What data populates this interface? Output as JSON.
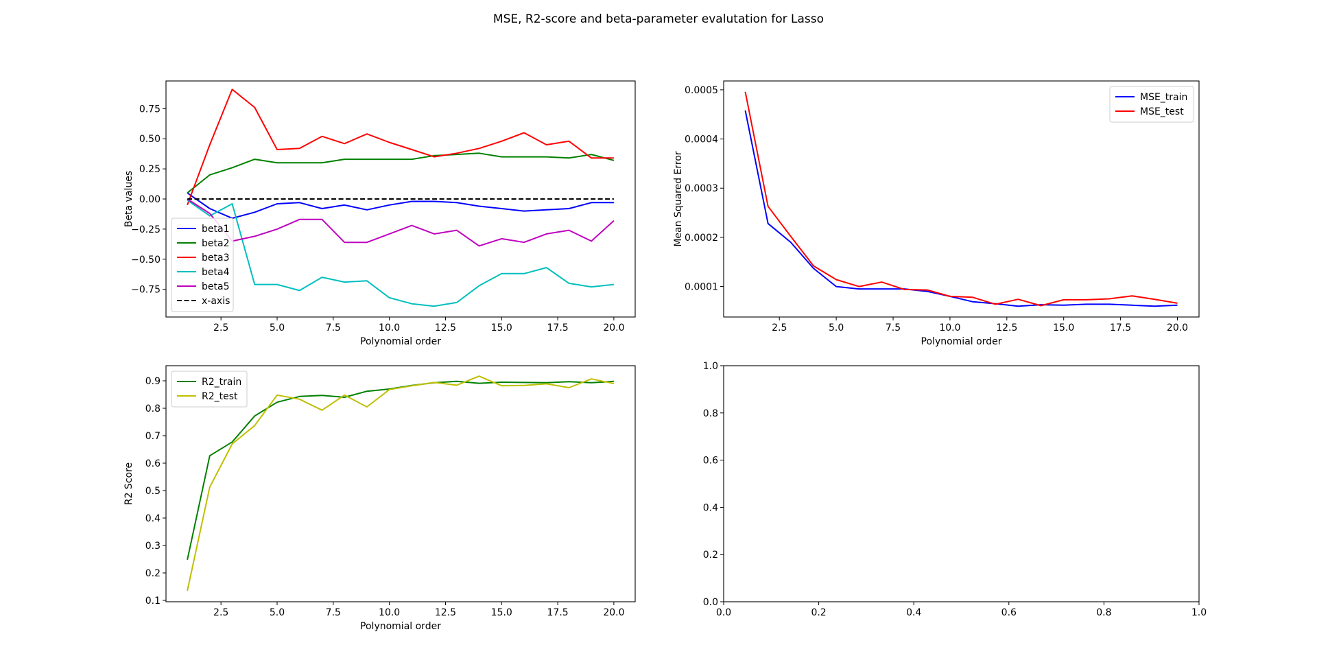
{
  "figure": {
    "title": "MSE, R2-score and beta-parameter evalutation for Lasso"
  },
  "chart_data": [
    {
      "type": "line",
      "id": "beta",
      "title": "",
      "xlabel": "Polynomial order",
      "ylabel": "Beta values",
      "xlim": [
        0.05,
        20.95
      ],
      "ylim": [
        -0.98,
        0.98
      ],
      "xticks": [
        2.5,
        5.0,
        7.5,
        10.0,
        12.5,
        15.0,
        17.5,
        20.0
      ],
      "xtick_labels": [
        "2.5",
        "5.0",
        "7.5",
        "10.0",
        "12.5",
        "15.0",
        "17.5",
        "20.0"
      ],
      "yticks": [
        -0.75,
        -0.5,
        -0.25,
        0.0,
        0.25,
        0.5,
        0.75
      ],
      "ytick_labels": [
        "−0.75",
        "−0.50",
        "−0.25",
        "0.00",
        "0.25",
        "0.50",
        "0.75"
      ],
      "legend": "lower-left",
      "x": [
        1,
        2,
        3,
        4,
        5,
        6,
        7,
        8,
        9,
        10,
        11,
        12,
        13,
        14,
        15,
        16,
        17,
        18,
        19,
        20
      ],
      "series": [
        {
          "name": "beta1",
          "color": "#0000ff",
          "dash": "solid",
          "values": [
            0.05,
            -0.08,
            -0.16,
            -0.11,
            -0.04,
            -0.03,
            -0.08,
            -0.05,
            -0.09,
            -0.05,
            -0.02,
            -0.02,
            -0.03,
            -0.06,
            -0.08,
            -0.1,
            -0.09,
            -0.08,
            -0.03,
            -0.03
          ]
        },
        {
          "name": "beta2",
          "color": "#008000",
          "dash": "solid",
          "values": [
            0.05,
            0.2,
            0.26,
            0.33,
            0.3,
            0.3,
            0.3,
            0.33,
            0.33,
            0.33,
            0.33,
            0.36,
            0.37,
            0.38,
            0.35,
            0.35,
            0.35,
            0.34,
            0.37,
            0.32
          ]
        },
        {
          "name": "beta3",
          "color": "#ff0000",
          "dash": "solid",
          "values": [
            -0.05,
            0.45,
            0.91,
            0.76,
            0.41,
            0.42,
            0.52,
            0.46,
            0.54,
            0.47,
            0.41,
            0.35,
            0.38,
            0.42,
            0.48,
            0.55,
            0.45,
            0.48,
            0.34,
            0.34
          ]
        },
        {
          "name": "beta4",
          "color": "#00bfbf",
          "dash": "solid",
          "values": [
            -0.01,
            -0.14,
            -0.04,
            -0.71,
            -0.71,
            -0.76,
            -0.65,
            -0.69,
            -0.68,
            -0.82,
            -0.87,
            -0.89,
            -0.86,
            -0.72,
            -0.62,
            -0.62,
            -0.57,
            -0.7,
            -0.73,
            -0.71
          ]
        },
        {
          "name": "beta5",
          "color": "#bf00bf",
          "dash": "solid",
          "values": [
            0.0,
            -0.12,
            -0.35,
            -0.31,
            -0.25,
            -0.17,
            -0.17,
            -0.36,
            -0.36,
            -0.29,
            -0.22,
            -0.29,
            -0.26,
            -0.39,
            -0.33,
            -0.36,
            -0.29,
            -0.26,
            -0.35,
            -0.18
          ]
        },
        {
          "name": "x-axis",
          "color": "#000000",
          "dash": "dashed",
          "values": [
            0,
            0,
            0,
            0,
            0,
            0,
            0,
            0,
            0,
            0,
            0,
            0,
            0,
            0,
            0,
            0,
            0,
            0,
            0,
            0
          ]
        }
      ]
    },
    {
      "type": "line",
      "id": "mse",
      "title": "",
      "xlabel": "Polynomial order",
      "ylabel": "Mean Squared Error",
      "xlim": [
        0.05,
        20.95
      ],
      "ylim": [
        3.8e-05,
        0.000518
      ],
      "xticks": [
        2.5,
        5.0,
        7.5,
        10.0,
        12.5,
        15.0,
        17.5,
        20.0
      ],
      "xtick_labels": [
        "2.5",
        "5.0",
        "7.5",
        "10.0",
        "12.5",
        "15.0",
        "17.5",
        "20.0"
      ],
      "yticks": [
        0.0001,
        0.0002,
        0.0003,
        0.0004,
        0.0005
      ],
      "ytick_labels": [
        "0.0001",
        "0.0002",
        "0.0003",
        "0.0004",
        "0.0005"
      ],
      "legend": "upper-right",
      "x": [
        1,
        2,
        3,
        4,
        5,
        6,
        7,
        8,
        9,
        10,
        11,
        12,
        13,
        14,
        15,
        16,
        17,
        18,
        19,
        20
      ],
      "series": [
        {
          "name": "MSE_train",
          "color": "#0000ff",
          "dash": "solid",
          "values": [
            0.000458,
            0.000228,
            0.00019,
            0.000137,
            0.0001,
            9.5e-05,
            9.5e-05,
            9.5e-05,
            9e-05,
            8e-05,
            6.9e-05,
            6.5e-05,
            6e-05,
            6.3e-05,
            6.2e-05,
            6.4e-05,
            6.4e-05,
            6.2e-05,
            6e-05,
            6.2e-05
          ]
        },
        {
          "name": "MSE_test",
          "color": "#ff0000",
          "dash": "solid",
          "values": [
            0.000496,
            0.000263,
            0.000202,
            0.000142,
            0.000114,
            0.0001,
            0.000109,
            9.4e-05,
            9.3e-05,
            8e-05,
            7.8e-05,
            6.4e-05,
            7.4e-05,
            6.1e-05,
            7.3e-05,
            7.3e-05,
            7.5e-05,
            8.1e-05,
            7.4e-05,
            6.6e-05
          ]
        }
      ]
    },
    {
      "type": "line",
      "id": "r2",
      "title": "",
      "xlabel": "Polynomial order",
      "ylabel": "R2 Score",
      "xlim": [
        0.05,
        20.95
      ],
      "ylim": [
        0.095,
        0.955
      ],
      "xticks": [
        2.5,
        5.0,
        7.5,
        10.0,
        12.5,
        15.0,
        17.5,
        20.0
      ],
      "xtick_labels": [
        "2.5",
        "5.0",
        "7.5",
        "10.0",
        "12.5",
        "15.0",
        "17.5",
        "20.0"
      ],
      "yticks": [
        0.1,
        0.2,
        0.3,
        0.4,
        0.5,
        0.6,
        0.7,
        0.8,
        0.9
      ],
      "ytick_labels": [
        "0.1",
        "0.2",
        "0.3",
        "0.4",
        "0.5",
        "0.6",
        "0.7",
        "0.8",
        "0.9"
      ],
      "legend": "upper-left",
      "x": [
        1,
        2,
        3,
        4,
        5,
        6,
        7,
        8,
        9,
        10,
        11,
        12,
        13,
        14,
        15,
        16,
        17,
        18,
        19,
        20
      ],
      "series": [
        {
          "name": "R2_train",
          "color": "#008000",
          "dash": "solid",
          "values": [
            0.248,
            0.627,
            0.677,
            0.772,
            0.822,
            0.843,
            0.847,
            0.84,
            0.862,
            0.87,
            0.883,
            0.893,
            0.898,
            0.891,
            0.895,
            0.894,
            0.893,
            0.897,
            0.893,
            0.898
          ]
        },
        {
          "name": "R2_test",
          "color": "#bfbf00",
          "dash": "solid",
          "values": [
            0.135,
            0.513,
            0.67,
            0.737,
            0.848,
            0.833,
            0.793,
            0.848,
            0.805,
            0.868,
            0.882,
            0.894,
            0.884,
            0.917,
            0.882,
            0.883,
            0.889,
            0.875,
            0.907,
            0.89
          ]
        }
      ]
    },
    {
      "type": "line",
      "id": "empty",
      "title": "",
      "xlabel": "",
      "ylabel": "",
      "xlim": [
        0,
        1
      ],
      "ylim": [
        0,
        1
      ],
      "xticks": [
        0,
        0.2,
        0.4,
        0.6,
        0.8,
        1.0
      ],
      "xtick_labels": [
        "0.0",
        "0.2",
        "0.4",
        "0.6",
        "0.8",
        "1.0"
      ],
      "yticks": [
        0,
        0.2,
        0.4,
        0.6,
        0.8,
        1.0
      ],
      "ytick_labels": [
        "0.0",
        "0.2",
        "0.4",
        "0.6",
        "0.8",
        "1.0"
      ],
      "legend": "none",
      "x": [],
      "series": []
    }
  ]
}
